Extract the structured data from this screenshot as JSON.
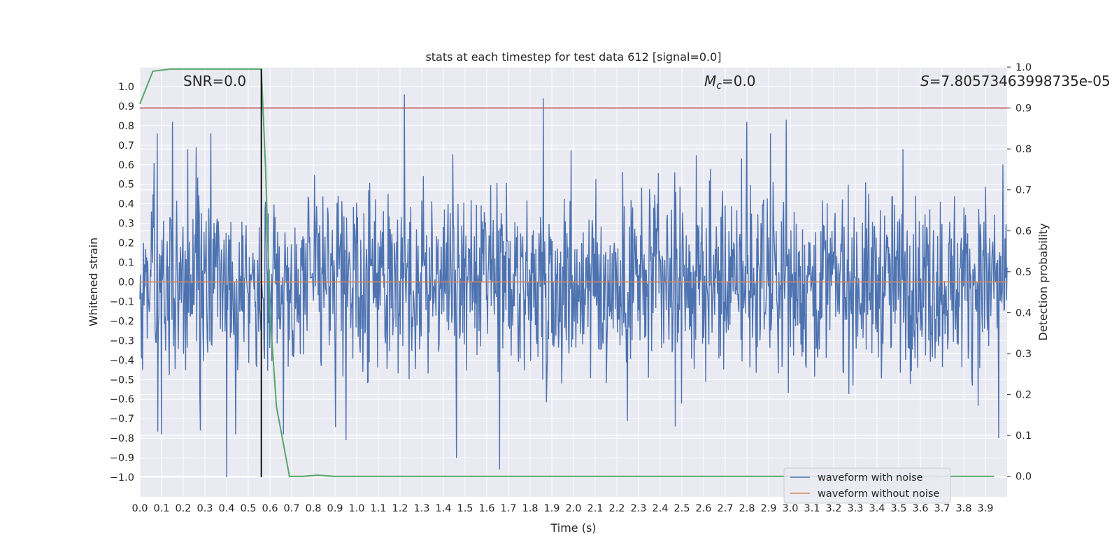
{
  "chart_data": {
    "type": "line",
    "title": "stats at each timestep for test data 612 [signal=0.0]",
    "xlabel": "Time (s)",
    "ylabel": "Whitened strain",
    "y2label": "Detection probability",
    "xlim": [
      0.0,
      4.0
    ],
    "ylim": [
      -1.1,
      1.1
    ],
    "y2lim": [
      -0.05,
      1.0
    ],
    "xticks": [
      "0.0",
      "0.1",
      "0.2",
      "0.3",
      "0.4",
      "0.5",
      "0.6",
      "0.7",
      "0.8",
      "0.9",
      "1.0",
      "1.1",
      "1.2",
      "1.3",
      "1.4",
      "1.5",
      "1.6",
      "1.7",
      "1.8",
      "1.9",
      "2.0",
      "2.1",
      "2.2",
      "2.3",
      "2.4",
      "2.5",
      "2.6",
      "2.7",
      "2.8",
      "2.9",
      "3.0",
      "3.1",
      "3.2",
      "3.3",
      "3.4",
      "3.5",
      "3.6",
      "3.7",
      "3.8",
      "3.9"
    ],
    "yticks": [
      "1.0",
      "0.9",
      "0.8",
      "0.7",
      "0.6",
      "0.5",
      "0.4",
      "0.3",
      "0.2",
      "0.1",
      "0.0",
      "−0.1",
      "−0.2",
      "−0.3",
      "−0.4",
      "−0.5",
      "−0.6",
      "−0.7",
      "−0.8",
      "−0.9",
      "−1.0"
    ],
    "y2ticks": [
      "1.0",
      "0.9",
      "0.8",
      "0.7",
      "0.6",
      "0.5",
      "0.4",
      "0.3",
      "0.2",
      "0.1",
      "0.0"
    ],
    "annotations": {
      "snr": "SNR=0.0",
      "mc_symbol": "M",
      "mc_sub": "c",
      "mc_value": "=0.0",
      "s_symbol": "S",
      "s_value": "=7.80573463998735e-05"
    },
    "legend": {
      "position": "lower-right",
      "entries": [
        "waveform with noise",
        "waveform without noise"
      ]
    },
    "threshold": 0.9,
    "marker_time": 0.56,
    "series": [
      {
        "name": "waveform with noise",
        "color": "#4c72b0",
        "kind": "noise",
        "range": [
          0.0,
          4.0
        ],
        "spikes": [
          [
            0.15,
            0.82
          ],
          [
            1.22,
            0.96
          ],
          [
            1.86,
            0.94
          ],
          [
            2.8,
            0.82
          ],
          [
            2.98,
            0.83
          ],
          [
            0.4,
            -1.0
          ],
          [
            1.66,
            -0.96
          ],
          [
            1.46,
            -0.9
          ],
          [
            3.96,
            -0.8
          ],
          [
            0.1,
            -0.78
          ],
          [
            0.28,
            -0.76
          ],
          [
            0.95,
            -0.81
          ],
          [
            2.47,
            -0.74
          ],
          [
            0.22,
            0.68
          ],
          [
            0.26,
            0.69
          ]
        ]
      },
      {
        "name": "waveform without noise",
        "color": "#dd8452",
        "x": [
          0.0,
          4.0
        ],
        "y": [
          0.0,
          0.0
        ]
      },
      {
        "name": "detection probability",
        "color": "#55a868",
        "axis": "right",
        "x": [
          0.0,
          0.06,
          0.14,
          0.2,
          0.3,
          0.4,
          0.5,
          0.56,
          0.58,
          0.6,
          0.63,
          0.69,
          0.75,
          0.82,
          0.9,
          1.0,
          2.0,
          3.0,
          3.94
        ],
        "y": [
          0.91,
          0.99,
          0.995,
          0.995,
          0.995,
          0.995,
          0.995,
          0.995,
          0.75,
          0.4,
          0.17,
          0.0,
          0.0,
          0.003,
          0.0,
          0.0,
          0.0,
          0.0,
          0.0
        ]
      }
    ],
    "colors": {
      "background": "#eaeaf2",
      "grid": "#ffffff",
      "threshold": "#c44e52",
      "marker": "#000000"
    }
  }
}
